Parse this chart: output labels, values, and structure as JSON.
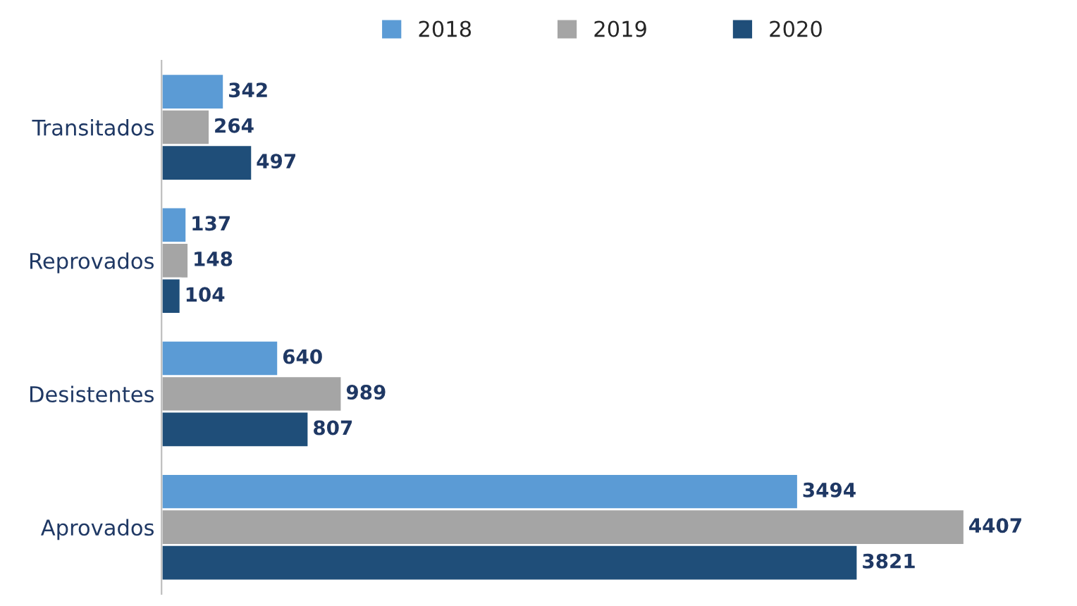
{
  "chart_data": {
    "type": "bar",
    "orientation": "horizontal",
    "categories": [
      "Transitados",
      "Reprovados",
      "Desistentes",
      "Aprovados"
    ],
    "series": [
      {
        "name": "2018",
        "color": "#5b9bd5",
        "values": [
          342,
          137,
          640,
          3494
        ]
      },
      {
        "name": "2019",
        "color": "#a5a5a5",
        "values": [
          264,
          148,
          989,
          4407
        ]
      },
      {
        "name": "2020",
        "color": "#1f4e79",
        "values": [
          497,
          104,
          807,
          3821
        ]
      }
    ],
    "data_labels": true,
    "legend": "top",
    "grid": false
  }
}
